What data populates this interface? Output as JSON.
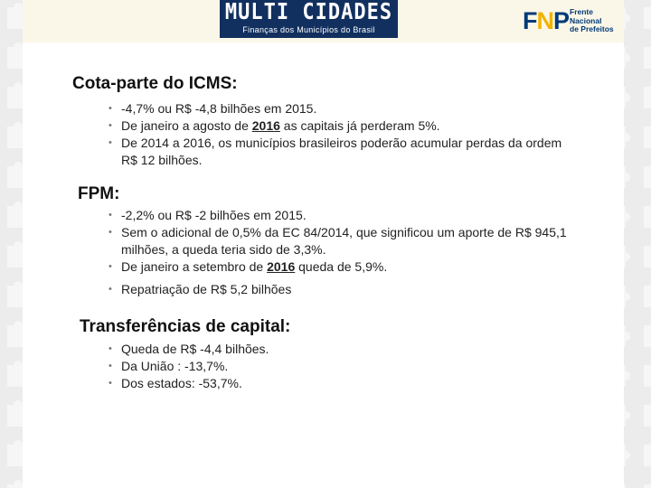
{
  "header": {
    "logo_title": "MULTI CIDADES",
    "logo_subtitle": "Finanças dos Municípios do Brasil",
    "fnp_letters": [
      "F",
      "N",
      "P"
    ],
    "fnp_lines": [
      "Frente",
      "Nacional",
      "de Prefeitos"
    ]
  },
  "sections": [
    {
      "heading": "Cota-parte do ICMS:",
      "items": [
        {
          "parts": [
            "-4,7% ou R$ -4,8 bilhões em 2015."
          ]
        },
        {
          "parts": [
            "De janeiro a agosto de ",
            "2016",
            " as capitais já perderam 5%."
          ]
        },
        {
          "parts": [
            "De 2014 a 2016, os municípios brasileiros poderão acumular perdas da ordem R$ 12 bilhões."
          ]
        }
      ]
    },
    {
      "heading": "FPM:",
      "items": [
        {
          "parts": [
            "-2,2% ou R$ -2 bilhões em 2015."
          ]
        },
        {
          "parts": [
            "Sem o adicional de 0,5% da EC 84/2014, que significou um aporte de R$ 945,1 milhões, a queda teria sido de 3,3%."
          ]
        },
        {
          "parts": [
            "De janeiro a setembro de ",
            "2016",
            " queda de 5,9%."
          ]
        },
        {
          "parts": [
            "Repatriação de R$ 5,2 bilhões"
          ]
        }
      ]
    },
    {
      "heading": "Transferências de capital:",
      "items": [
        {
          "parts": [
            "Queda de R$ -4,4 bilhões."
          ]
        },
        {
          "parts": [
            "Da União : -13,7%."
          ]
        },
        {
          "parts": [
            "Dos estados: -53,7%."
          ]
        }
      ]
    }
  ],
  "colors": {
    "navy": "#12305f",
    "fnp_blue": "#003a78",
    "fnp_yellow": "#f2b300"
  }
}
